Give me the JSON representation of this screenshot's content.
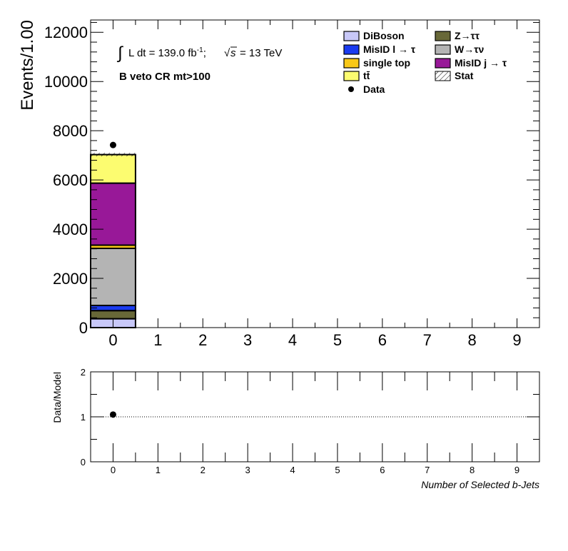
{
  "chart_data": [
    {
      "type": "bar",
      "stacked": true,
      "x": [
        0,
        1,
        2,
        3,
        4,
        5,
        6,
        7,
        8,
        9
      ],
      "xlim": [
        -0.5,
        9.5
      ],
      "ylim": [
        0,
        12500
      ],
      "ylabel": "Events/1.00",
      "xtick_labels": [
        "0",
        "1",
        "2",
        "3",
        "4",
        "5",
        "6",
        "7",
        "8",
        "9"
      ],
      "ytick_labels": [
        "0",
        "2000",
        "4000",
        "6000",
        "8000",
        "10000",
        "12000"
      ],
      "ytick_values": [
        0,
        2000,
        4000,
        6000,
        8000,
        10000,
        12000
      ],
      "lumi_prefix": "L dt = 139.0 fb",
      "lumi_exp": "-1",
      "lumi_sep": ";",
      "energy_sym": "s",
      "energy_value": "= 13 TeV",
      "region_label": "B veto CR mt>100",
      "series": [
        {
          "name": "DiBoson",
          "color": "#c8c8f8",
          "values": [
            360,
            0,
            0,
            0,
            0,
            0,
            0,
            0,
            0,
            0
          ]
        },
        {
          "name": "Z→ττ",
          "color": "#686838",
          "values": [
            330,
            0,
            0,
            0,
            0,
            0,
            0,
            0,
            0,
            0
          ]
        },
        {
          "name": "MisID l → τ",
          "color": "#1a3bf0",
          "values": [
            210,
            0,
            0,
            0,
            0,
            0,
            0,
            0,
            0,
            0
          ]
        },
        {
          "name": "W→τν",
          "color": "#b4b4b4",
          "values": [
            2320,
            0,
            0,
            0,
            0,
            0,
            0,
            0,
            0,
            0
          ]
        },
        {
          "name": "single top",
          "color": "#f8c818",
          "values": [
            130,
            0,
            0,
            0,
            0,
            0,
            0,
            0,
            0,
            0
          ]
        },
        {
          "name": "MisID j → τ",
          "color": "#981898",
          "values": [
            2520,
            0,
            0,
            0,
            0,
            0,
            0,
            0,
            0,
            0
          ]
        },
        {
          "name": "tt̄",
          "color": "#fcfc70",
          "values": [
            1160,
            0,
            0,
            0,
            0,
            0,
            0,
            0,
            0,
            0
          ]
        }
      ],
      "stat_name": "Stat",
      "data": {
        "name": "Data",
        "x": [
          0
        ],
        "values": [
          7420
        ]
      },
      "legend": [
        {
          "name": "DiBoson",
          "kind": "box",
          "color": "#c8c8f8"
        },
        {
          "name": "Z→ττ",
          "kind": "box",
          "color": "#686838"
        },
        {
          "name": "MisID l → τ",
          "kind": "box",
          "color": "#1a3bf0"
        },
        {
          "name": "W→τν",
          "kind": "box",
          "color": "#b4b4b4"
        },
        {
          "name": "single top",
          "kind": "box",
          "color": "#f8c818"
        },
        {
          "name": "MisID j → τ",
          "kind": "box",
          "color": "#981898"
        },
        {
          "name": "tt̄",
          "kind": "box",
          "color": "#fcfc70"
        },
        {
          "name": "Stat",
          "kind": "hatch",
          "color": "#000000"
        },
        {
          "name": "Data",
          "kind": "marker",
          "color": "#000000"
        }
      ],
      "legend_placement": "top-right"
    },
    {
      "type": "scatter",
      "xlabel": "Number of Selected b-Jets",
      "ylabel": "Data/Model",
      "xlim": [
        -0.5,
        9.5
      ],
      "ylim": [
        0,
        2
      ],
      "xtick_labels": [
        "0",
        "1",
        "2",
        "3",
        "4",
        "5",
        "6",
        "7",
        "8",
        "9"
      ],
      "ytick_labels": [
        "0",
        "1",
        "2"
      ],
      "ytick_values": [
        0,
        1,
        2
      ],
      "reference_line": 1,
      "points": [
        {
          "x": 0,
          "y": 1.05
        }
      ]
    }
  ]
}
